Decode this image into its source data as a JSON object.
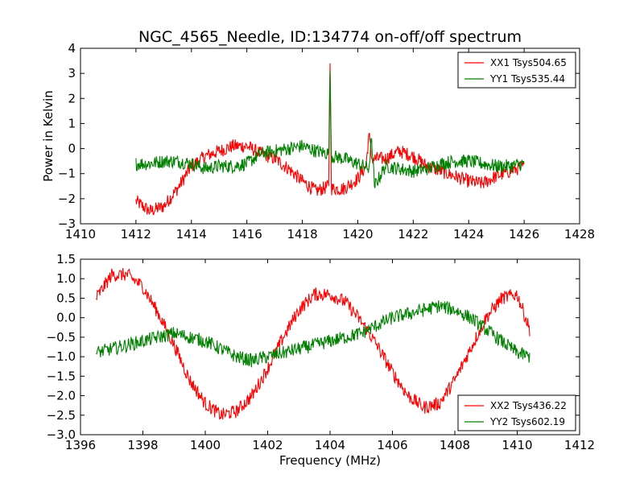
{
  "chart_data": [
    {
      "type": "line",
      "title": "NGC_4565_Needle, ID:134774 on-off/off spectrum",
      "xlabel": "",
      "ylabel": "Power in Kelvin",
      "xlim": [
        1410,
        1428
      ],
      "ylim": [
        -3,
        4
      ],
      "xticks": [
        "1410",
        "1412",
        "1414",
        "1416",
        "1418",
        "1420",
        "1422",
        "1424",
        "1426",
        "1428"
      ],
      "yticks": [
        "−3",
        "−2",
        "−1",
        "0",
        "1",
        "2",
        "3",
        "4"
      ],
      "legend_position": "top-right",
      "grid": false,
      "series": [
        {
          "name": "XX1 Tsys504.65",
          "color": "#ff0000",
          "x": [
            1412.0,
            1412.5,
            1413.0,
            1413.5,
            1414.0,
            1414.5,
            1415.0,
            1415.5,
            1416.0,
            1416.5,
            1417.0,
            1417.5,
            1418.0,
            1418.5,
            1418.95,
            1419.0,
            1419.05,
            1419.5,
            1420.0,
            1420.3,
            1420.4,
            1420.5,
            1421.0,
            1421.5,
            1422.0,
            1422.5,
            1423.0,
            1423.5,
            1424.0,
            1424.5,
            1425.0,
            1425.5,
            1426.0
          ],
          "y": [
            -2.1,
            -2.5,
            -2.3,
            -1.6,
            -0.7,
            -0.3,
            -0.1,
            0.1,
            0.1,
            -0.2,
            -0.4,
            -0.8,
            -1.3,
            -1.7,
            -1.5,
            3.4,
            -1.6,
            -1.6,
            -1.2,
            -0.7,
            0.6,
            -0.4,
            -0.4,
            -0.1,
            -0.3,
            -0.7,
            -0.9,
            -1.1,
            -1.3,
            -1.4,
            -1.1,
            -0.9,
            -0.7
          ]
        },
        {
          "name": "YY1 Tsys535.44",
          "color": "#008000",
          "x": [
            1412.0,
            1412.5,
            1413.0,
            1413.5,
            1414.0,
            1414.5,
            1415.0,
            1415.5,
            1416.0,
            1416.5,
            1417.0,
            1417.5,
            1418.0,
            1418.5,
            1418.95,
            1419.0,
            1419.05,
            1419.5,
            1420.0,
            1420.4,
            1420.5,
            1420.6,
            1421.0,
            1421.5,
            1422.0,
            1422.5,
            1423.0,
            1423.5,
            1424.0,
            1424.5,
            1425.0,
            1425.5,
            1426.0
          ],
          "y": [
            -0.6,
            -0.6,
            -0.5,
            -0.5,
            -0.6,
            -0.8,
            -0.7,
            -0.7,
            -0.6,
            -0.2,
            -0.1,
            0.0,
            0.1,
            -0.1,
            -0.2,
            3.1,
            -0.3,
            -0.4,
            -0.6,
            -0.8,
            0.4,
            -1.5,
            -0.7,
            -0.8,
            -0.9,
            -0.8,
            -0.6,
            -0.5,
            -0.5,
            -0.6,
            -0.7,
            -0.7,
            -0.6
          ]
        }
      ]
    },
    {
      "type": "line",
      "title": "",
      "xlabel": "Frequency (MHz)",
      "ylabel": "",
      "xlim": [
        1396,
        1412
      ],
      "ylim": [
        -3.0,
        1.5
      ],
      "xticks": [
        "1396",
        "1398",
        "1400",
        "1402",
        "1404",
        "1406",
        "1408",
        "1410",
        "1412"
      ],
      "yticks": [
        "−3.0",
        "−2.5",
        "−2.0",
        "−1.5",
        "−1.0",
        "−0.5",
        "0.0",
        "0.5",
        "1.0",
        "1.5"
      ],
      "legend_position": "bottom-right",
      "grid": false,
      "series": [
        {
          "name": "XX2 Tsys436.22",
          "color": "#ff0000",
          "x": [
            1396.5,
            1397.0,
            1397.5,
            1398.0,
            1398.5,
            1399.0,
            1399.5,
            1400.0,
            1400.5,
            1401.0,
            1401.5,
            1402.0,
            1402.5,
            1403.0,
            1403.5,
            1404.0,
            1404.5,
            1405.0,
            1405.5,
            1406.0,
            1406.5,
            1407.0,
            1407.5,
            1408.0,
            1408.5,
            1409.0,
            1409.5,
            1410.0,
            1410.4
          ],
          "y": [
            0.5,
            1.1,
            1.1,
            0.8,
            0.1,
            -0.7,
            -1.6,
            -2.2,
            -2.5,
            -2.4,
            -2.0,
            -1.3,
            -0.5,
            0.2,
            0.6,
            0.6,
            0.4,
            -0.1,
            -0.7,
            -1.4,
            -2.0,
            -2.3,
            -2.2,
            -1.6,
            -0.8,
            0.0,
            0.5,
            0.6,
            -0.3
          ]
        },
        {
          "name": "YY2 Tsys602.19",
          "color": "#008000",
          "x": [
            1396.5,
            1397.0,
            1397.5,
            1398.0,
            1398.5,
            1399.0,
            1399.5,
            1400.0,
            1400.5,
            1401.0,
            1401.5,
            1402.0,
            1402.5,
            1403.0,
            1403.5,
            1404.0,
            1404.5,
            1405.0,
            1405.5,
            1406.0,
            1406.5,
            1407.0,
            1407.5,
            1408.0,
            1408.5,
            1409.0,
            1409.5,
            1410.0,
            1410.4
          ],
          "y": [
            -0.9,
            -0.8,
            -0.7,
            -0.6,
            -0.5,
            -0.4,
            -0.5,
            -0.6,
            -0.8,
            -1.0,
            -1.1,
            -1.0,
            -0.9,
            -0.8,
            -0.7,
            -0.6,
            -0.5,
            -0.4,
            -0.2,
            0.0,
            0.1,
            0.2,
            0.3,
            0.2,
            0.0,
            -0.3,
            -0.6,
            -0.9,
            -1.0
          ]
        }
      ]
    }
  ]
}
